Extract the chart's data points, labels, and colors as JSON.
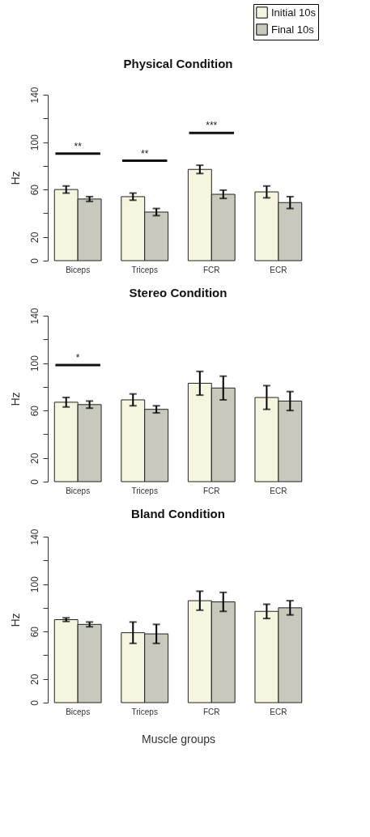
{
  "chart_data": [
    {
      "type": "bar",
      "title": "Physical Condition",
      "ylabel": "Hz",
      "categories": [
        "Biceps",
        "Triceps",
        "FCR",
        "ECR"
      ],
      "series": [
        {
          "name": "Initial 10s",
          "color": "#f6f6e0",
          "values": [
            60,
            54,
            77,
            58
          ],
          "errors": [
            3,
            3,
            3.5,
            5
          ]
        },
        {
          "name": "Final 10s",
          "color": "#c8c8bc",
          "values": [
            52,
            41,
            56,
            49
          ],
          "errors": [
            2,
            3,
            3.5,
            5
          ]
        }
      ],
      "ylim": [
        0,
        140
      ],
      "yticks": [
        0,
        20,
        {
          "value": 40,
          "label": null
        },
        60,
        {
          "value": 80,
          "label": null
        },
        100,
        {
          "value": 120,
          "label": null
        },
        140
      ],
      "annotations": [
        "**",
        "**",
        "***"
      ],
      "legend": "top right",
      "grid": false
    },
    {
      "type": "bar",
      "title": "Stereo Condition",
      "ylabel": "Hz",
      "categories": [
        "Biceps",
        "Triceps",
        "FCR",
        "ECR"
      ],
      "series": [
        {
          "color": "#f6f6e0",
          "values": [
            67,
            69,
            83,
            71
          ],
          "errors": [
            4,
            5,
            10,
            10
          ]
        },
        {
          "color": "#c8c8bc",
          "values": [
            65,
            61,
            79,
            68
          ],
          "errors": [
            3,
            3,
            10,
            8
          ]
        }
      ],
      "ylim": [
        0,
        140
      ],
      "yticks": [
        0,
        20,
        {
          "value": 40,
          "label": null
        },
        60,
        {
          "value": 80,
          "label": null
        },
        100,
        {
          "value": 120,
          "label": null
        },
        140
      ],
      "annotations": [
        "*"
      ],
      "legend": false,
      "grid": false
    },
    {
      "type": "bar",
      "title": "Bland Condition",
      "ylabel": "Hz",
      "xlabel": "Muscle groups",
      "categories": [
        "Biceps",
        "Triceps",
        "FCR",
        "ECR"
      ],
      "series": [
        {
          "color": "#f6f6e0",
          "values": [
            70,
            59,
            86,
            77
          ],
          "errors": [
            1.5,
            9,
            8,
            6
          ]
        },
        {
          "color": "#c8c8bc",
          "values": [
            66,
            58,
            85,
            80
          ],
          "errors": [
            2,
            8,
            8,
            6
          ]
        }
      ],
      "ylim": [
        0,
        140
      ],
      "yticks": [
        0,
        20,
        {
          "value": 40,
          "label": null
        },
        60,
        {
          "value": 80,
          "label": null
        },
        100,
        {
          "value": 120,
          "label": null
        },
        140
      ],
      "legend": false,
      "grid": false
    }
  ]
}
